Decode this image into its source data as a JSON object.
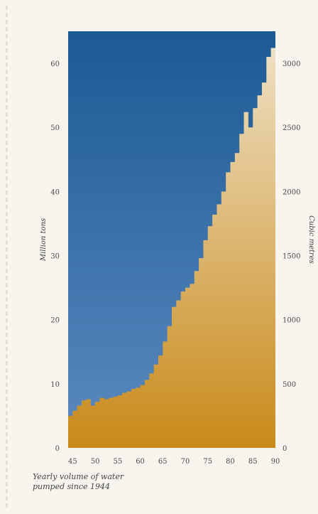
{
  "colors": {
    "upper_fill_top": "#1c5a94",
    "upper_fill_bottom": "#5b8ac0",
    "lower_fill_top": "#efe1c6",
    "lower_fill_bottom": "#c98a1a"
  },
  "chart_data": {
    "type": "area",
    "caption": [
      "Yearly volume of water",
      "pumped since 1944"
    ],
    "left_axis": {
      "label": "Million tons",
      "ylim": [
        0,
        65
      ],
      "ticks": [
        0,
        10,
        20,
        30,
        40,
        50,
        60
      ]
    },
    "right_axis": {
      "label": "Cubic metres",
      "ylim": [
        0,
        3250
      ],
      "ticks": [
        0,
        500,
        1000,
        1500,
        2000,
        2500,
        3000
      ]
    },
    "x_axis": {
      "xlim": [
        44,
        90
      ],
      "ticks": [
        45,
        50,
        55,
        60,
        65,
        70,
        75,
        80,
        85,
        90
      ]
    },
    "series": [
      {
        "x": [
          44,
          45,
          46,
          47,
          48,
          49,
          50,
          51,
          52,
          53,
          54,
          55,
          56,
          57,
          58,
          59,
          60,
          61,
          62,
          63,
          64,
          65,
          66,
          67,
          68,
          69,
          70,
          71,
          72,
          73,
          74,
          75,
          76,
          77,
          78,
          79,
          80,
          81,
          82,
          83,
          84,
          85,
          86,
          87,
          88,
          89,
          90
        ],
        "values": [
          250,
          290,
          330,
          370,
          380,
          330,
          360,
          390,
          380,
          390,
          400,
          410,
          430,
          440,
          460,
          470,
          490,
          530,
          580,
          650,
          720,
          830,
          950,
          1100,
          1150,
          1220,
          1250,
          1280,
          1380,
          1480,
          1620,
          1730,
          1820,
          1900,
          2000,
          2150,
          2230,
          2300,
          2450,
          2620,
          2500,
          2650,
          2750,
          2850,
          3050,
          3120,
          3180
        ]
      }
    ]
  }
}
